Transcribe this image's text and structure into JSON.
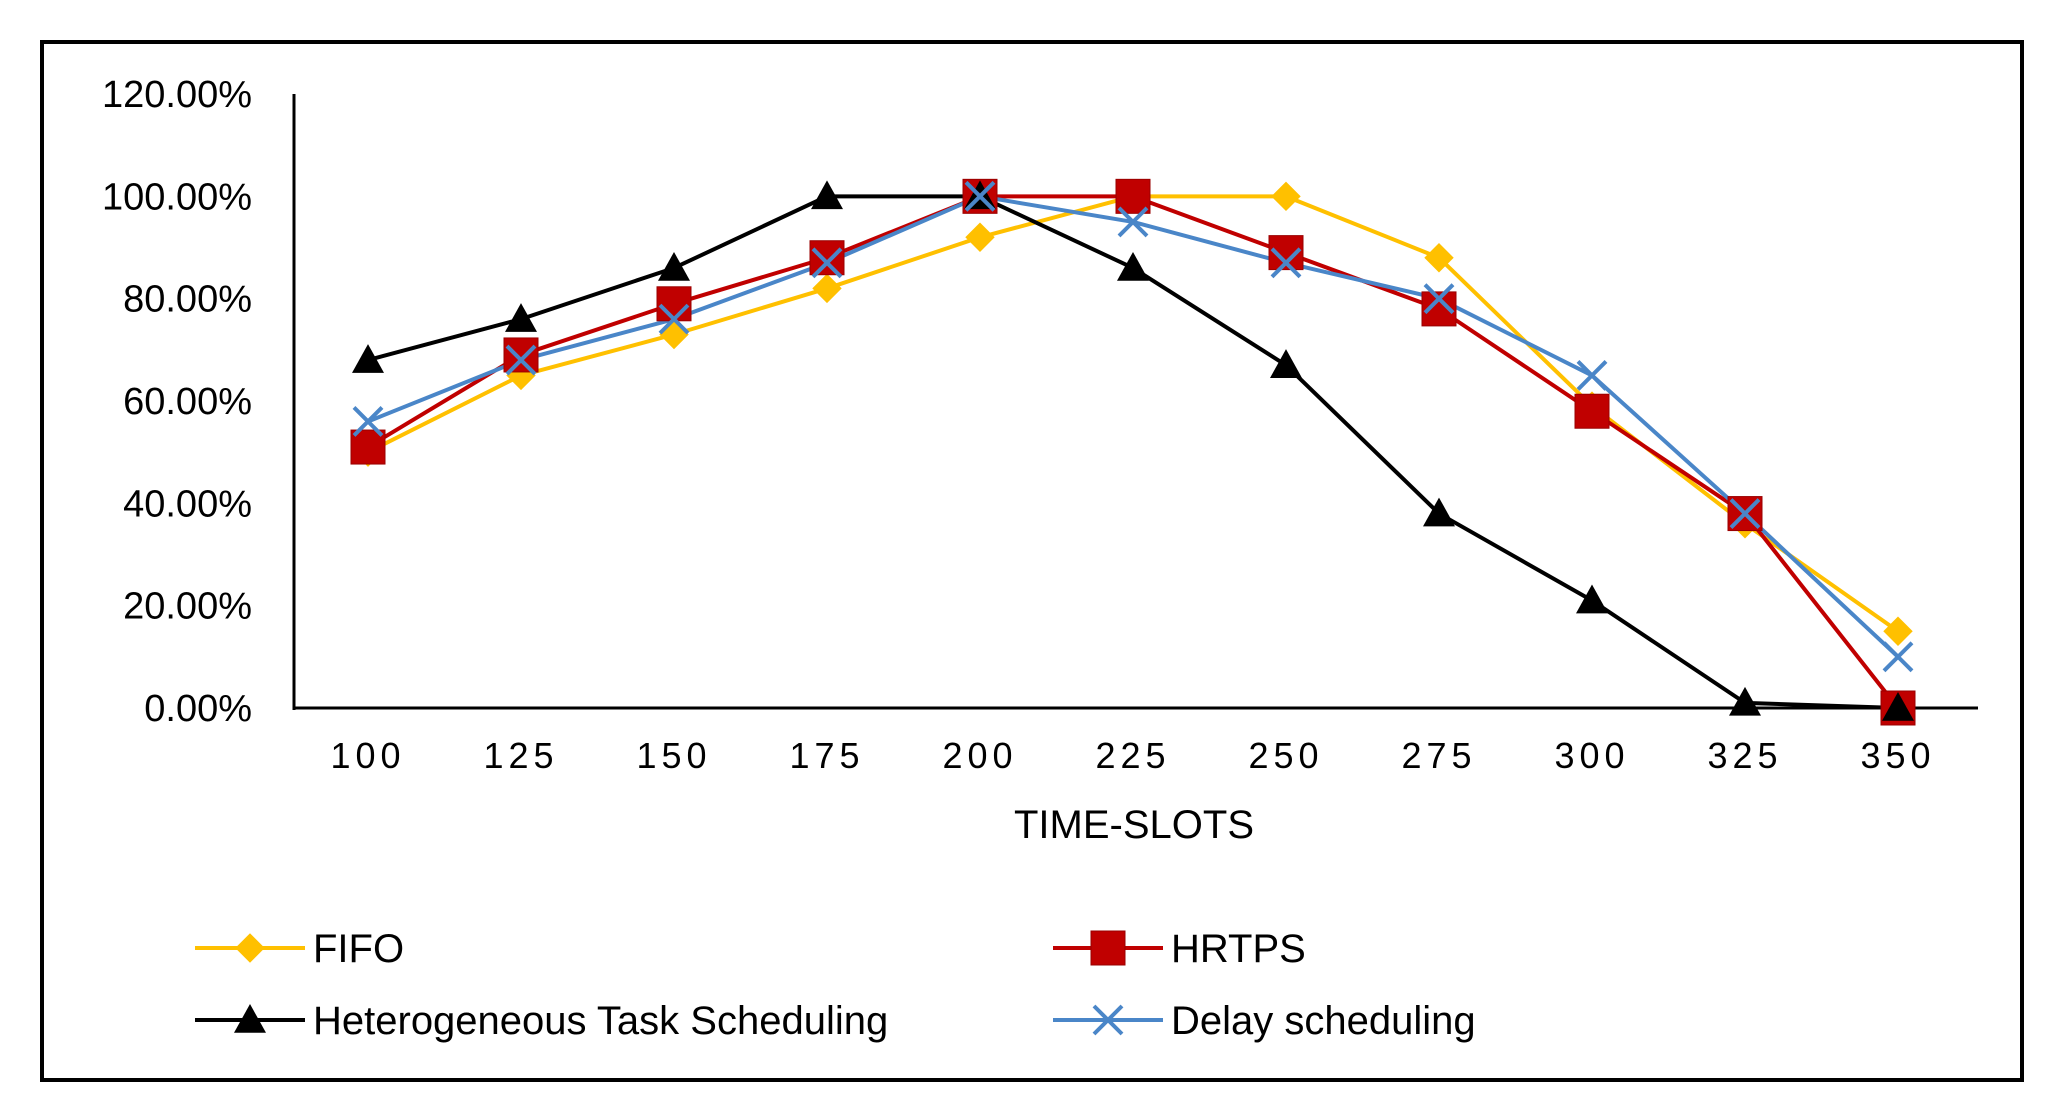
{
  "chart_data": {
    "type": "line",
    "title": "",
    "xlabel": "TIME-SLOTS",
    "ylabel": "",
    "x": [
      100,
      125,
      150,
      175,
      200,
      225,
      250,
      275,
      300,
      325,
      350
    ],
    "x_tick_labels": [
      "100",
      "125",
      "150",
      "175",
      "200",
      "225",
      "250",
      "275",
      "300",
      "325",
      "350"
    ],
    "y_tick_labels": [
      "0.00%",
      "20.00%",
      "40.00%",
      "60.00%",
      "80.00%",
      "100.00%",
      "120.00%"
    ],
    "ylim": [
      0,
      120
    ],
    "grid": false,
    "legend_position": "bottom",
    "series": [
      {
        "name": "FIFO",
        "color": "#FFC000",
        "marker": "diamond",
        "values": [
          50,
          65,
          73,
          82,
          92,
          100,
          100,
          88,
          59,
          36,
          15
        ]
      },
      {
        "name": "HRTPS",
        "color": "#C00000",
        "marker": "square",
        "values": [
          51,
          69,
          79,
          88,
          100,
          100,
          89,
          78,
          58,
          38,
          0
        ]
      },
      {
        "name": "Heterogeneous Task Scheduling",
        "color": "#000000",
        "marker": "triangle",
        "values": [
          68,
          76,
          86,
          100,
          100,
          86,
          67,
          38,
          21,
          1,
          0
        ]
      },
      {
        "name": "Delay scheduling",
        "color": "#4A86C8",
        "marker": "x",
        "values": [
          56,
          68,
          76,
          87,
          100,
          95,
          87,
          80,
          65,
          38,
          10
        ]
      }
    ]
  }
}
